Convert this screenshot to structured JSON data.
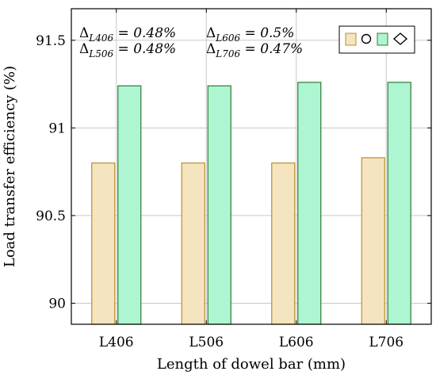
{
  "chart_data": {
    "type": "bar",
    "categories": [
      "L406",
      "L506",
      "L606",
      "L706"
    ],
    "series": [
      {
        "values": [
          90.8,
          90.8,
          90.8,
          90.83
        ],
        "color": "#f5e4c0",
        "stroke": "#b8902a",
        "marker": "circle"
      },
      {
        "values": [
          91.24,
          91.24,
          91.26,
          91.26
        ],
        "color": "#aef5d2",
        "stroke": "#2f7a32",
        "marker": "diamond"
      }
    ],
    "xlabel": "Length of dowel bar (mm)",
    "ylabel": "Load transfer efficiency (%)",
    "ylim": [
      89.88,
      91.68
    ],
    "yticks": [
      90,
      90.5,
      91,
      91.5
    ],
    "ytick_labels": [
      "90",
      "90.5",
      "91",
      "91.5"
    ],
    "grid": true,
    "legend_position": "top-right",
    "annotations": [
      {
        "symbol": "Δ",
        "sub": "L406",
        "text": " = 0.48%"
      },
      {
        "symbol": "Δ",
        "sub": "L506",
        "text": " = 0.48%"
      },
      {
        "symbol": "Δ",
        "sub": "L606",
        "text": " = 0.5%"
      },
      {
        "symbol": "Δ",
        "sub": "L706",
        "text": " = 0.47%"
      }
    ]
  }
}
